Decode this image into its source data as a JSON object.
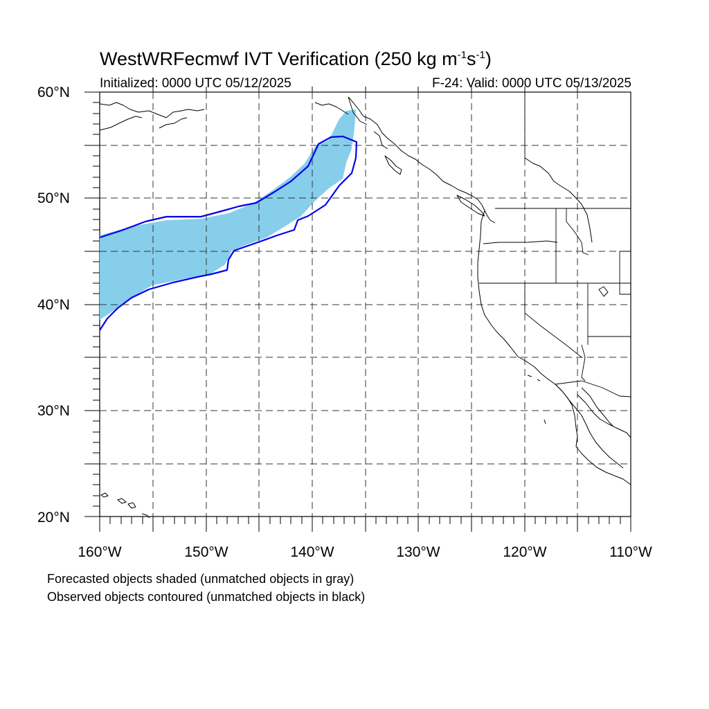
{
  "title": {
    "main": "WestWRFecmwf IVT Verification (250 kg m",
    "exp1": "-1",
    "mid": "s",
    "exp2": "-1",
    "end": ")"
  },
  "init_label": "Initialized: 0000 UTC 05/12/2025",
  "valid_label": "F-24: Valid: 0000 UTC 05/13/2025",
  "lat_labels": [
    "60°N",
    "50°N",
    "40°N",
    "30°N",
    "20°N"
  ],
  "lon_labels": [
    "160°W",
    "150°W",
    "140°W",
    "130°W",
    "120°W",
    "110°W"
  ],
  "legend_notes": [
    "Forecasted objects shaded (unmatched objects in gray)",
    "Observed objects contoured (unmatched objects in black)"
  ],
  "map": {
    "lon_range": [
      -160,
      -110
    ],
    "lat_range": [
      20,
      60
    ],
    "grid_step_deg": 5,
    "forecast_fill_color": "#87ceeb",
    "observed_contour_color": "#0000ee",
    "grid_style": "dashed"
  }
}
